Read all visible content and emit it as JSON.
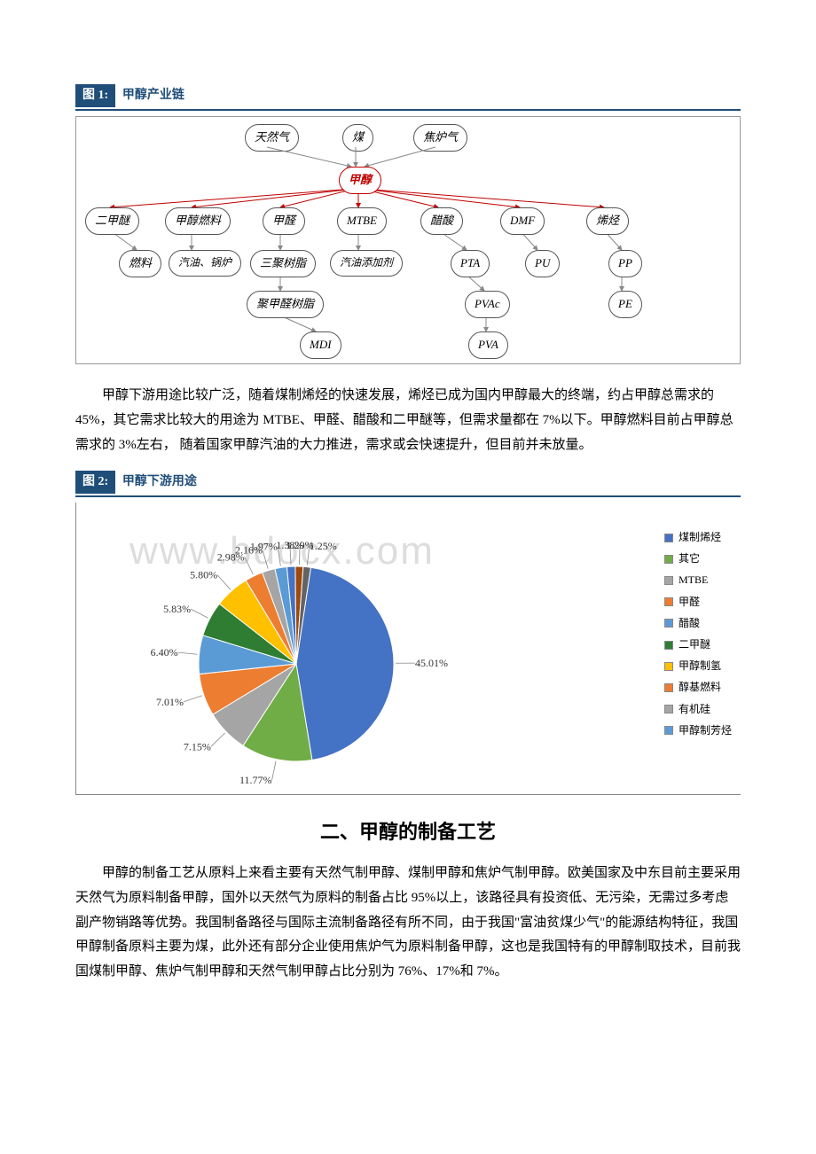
{
  "fig1": {
    "label": "图 1:",
    "title": "甲醇产业链",
    "sources": [
      "天然气",
      "煤",
      "焦炉气"
    ],
    "center": "甲醇",
    "row_mid": [
      "二甲醚",
      "甲醇燃料",
      "甲醛",
      "MTBE",
      "醋酸",
      "DMF",
      "烯烃"
    ],
    "row_low1": [
      "燃料",
      "汽油、锅炉",
      "三聚树脂",
      "汽油添加剂",
      "PTA",
      "PU",
      "PP"
    ],
    "row_low2_left": "聚甲醛树脂",
    "row_low2_right1": "PVAc",
    "row_low2_right2": "PE",
    "row_low3_left": "MDI",
    "row_low3_right": "PVA"
  },
  "para1": "甲醇下游用途比较广泛，随着煤制烯烃的快速发展，烯烃已成为国内甲醇最大的终端，约占甲醇总需求的 45%，其它需求比较大的用途为 MTBE、甲醛、醋酸和二甲醚等，但需求量都在 7%以下。甲醇燃料目前占甲醇总需求的 3%左右， 随着国家甲醇汽油的大力推进，需求或会快速提升，但目前并未放量。",
  "fig2": {
    "label": "图 2:",
    "title": "甲醇下游用途",
    "slices": [
      {
        "label": "煤制烯烃",
        "value": 45.01,
        "color": "#4472c4"
      },
      {
        "label": "其它",
        "value": 11.77,
        "color": "#70ad47"
      },
      {
        "label": "MTBE",
        "value": 7.15,
        "color": "#a5a5a5"
      },
      {
        "label": "甲醛",
        "value": 7.01,
        "color": "#ed7d31"
      },
      {
        "label": "醋酸",
        "value": 6.4,
        "color": "#5b9bd5"
      },
      {
        "label": "二甲醚",
        "value": 5.83,
        "color": "#2e7d32"
      },
      {
        "label": "甲醇制氢",
        "value": 5.8,
        "color": "#ffc000"
      },
      {
        "label": "醇基燃料",
        "value": 2.98,
        "color": "#ed7d31"
      },
      {
        "label": "有机硅",
        "value": 2.16,
        "color": "#a5a5a5"
      },
      {
        "label": "甲醇制芳烃",
        "value": 1.97,
        "color": "#5b9bd5"
      },
      {
        "label": "",
        "value": 1.38,
        "color": "#4472c4"
      },
      {
        "label": "",
        "value": 1.29,
        "color": "#9e480e"
      },
      {
        "label": "",
        "value": 1.25,
        "color": "#636363"
      }
    ],
    "callouts": [
      "1.97%",
      "2.16%",
      "2.98%",
      "5.80%",
      "5.83%",
      "6.40%",
      "7.01%",
      "7.15%",
      "11.77%",
      "45.01%",
      "1.38%",
      "1.29%",
      "1.25%"
    ]
  },
  "section2_title": "二、甲醇的制备工艺",
  "para2": "甲醇的制备工艺从原料上来看主要有天然气制甲醇、煤制甲醇和焦炉气制甲醇。欧美国家及中东目前主要采用天然气为原料制备甲醇，国外以天然气为原料的制备占比 95%以上，该路径具有投资低、无污染，无需过多考虑副产物销路等优势。我国制备路径与国际主流制备路径有所不同，由于我国\"富油贫煤少气\"的能源结构特征，我国甲醇制备原料主要为煤，此外还有部分企业使用焦炉气为原料制备甲醇，这也是我国特有的甲醇制取技术，目前我国煤制甲醇、焦炉气制甲醇和天然气制甲醇占比分别为 76%、17%和 7%。",
  "watermark": "www.bdocx.com"
}
